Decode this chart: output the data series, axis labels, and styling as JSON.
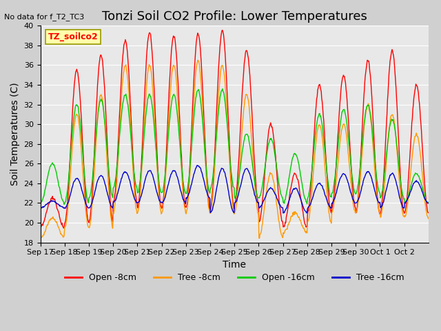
{
  "title": "Tonzi Soil CO2 Profile: Lower Temperatures",
  "no_data_text": "No data for f_T2_TC3",
  "legend_box_text": "TZ_soilco2",
  "xlabel": "Time",
  "ylabel": "Soil Temperatures (C)",
  "ylim": [
    18,
    40
  ],
  "yticks": [
    18,
    20,
    22,
    24,
    26,
    28,
    30,
    32,
    34,
    36,
    38,
    40
  ],
  "xtick_labels": [
    "Sep 17",
    "Sep 18",
    "Sep 19",
    "Sep 20",
    "Sep 21",
    "Sep 22",
    "Sep 23",
    "Sep 24",
    "Sep 25",
    "Sep 26",
    "Sep 27",
    "Sep 28",
    "Sep 29",
    "Sep 30",
    "Oct 1",
    "Oct 2"
  ],
  "colors": {
    "open_8cm": "#ff0000",
    "tree_8cm": "#ff9900",
    "open_16cm": "#00cc00",
    "tree_16cm": "#0000cc"
  },
  "legend_labels": [
    "Open -8cm",
    "Tree -8cm",
    "Open -16cm",
    "Tree -16cm"
  ],
  "plot_bg_color": "#e8e8e8",
  "grid_color": "#ffffff",
  "title_fontsize": 13,
  "axis_fontsize": 10,
  "tick_fontsize": 8,
  "open_8cm_peaks": [
    22.5,
    35.5,
    37.0,
    38.5,
    39.3,
    39.0,
    39.2,
    39.5,
    37.5,
    30.0,
    25.0,
    34.0,
    35.0,
    36.5,
    37.5,
    34.0
  ],
  "open_8cm_troughs": [
    19.5,
    20.0,
    20.0,
    22.0,
    21.5,
    21.5,
    21.5,
    21.5,
    22.0,
    20.0,
    19.5,
    21.0,
    21.5,
    21.0,
    21.0,
    21.0
  ],
  "tree_8cm_peaks": [
    20.5,
    31.0,
    33.0,
    36.0,
    36.0,
    36.0,
    36.5,
    36.0,
    33.0,
    25.0,
    21.0,
    30.0,
    30.0,
    32.0,
    31.0,
    29.0
  ],
  "tree_8cm_troughs": [
    18.5,
    19.5,
    19.5,
    21.0,
    21.0,
    21.0,
    21.0,
    21.0,
    21.0,
    18.5,
    19.0,
    20.0,
    21.0,
    21.0,
    20.5,
    20.5
  ],
  "open_16cm_peaks": [
    26.0,
    32.0,
    32.5,
    33.0,
    33.0,
    33.0,
    33.5,
    33.5,
    29.0,
    28.5,
    27.0,
    31.0,
    31.5,
    32.0,
    30.5,
    25.0
  ],
  "open_16cm_troughs": [
    22.0,
    22.0,
    22.5,
    23.5,
    23.0,
    23.0,
    23.0,
    23.5,
    22.5,
    22.5,
    22.0,
    22.5,
    23.0,
    23.0,
    22.5,
    22.0
  ],
  "tree_16cm_peaks": [
    22.2,
    24.5,
    24.8,
    25.2,
    25.3,
    25.3,
    25.8,
    25.5,
    25.5,
    23.5,
    23.5,
    24.0,
    25.0,
    25.2,
    25.0,
    24.2
  ],
  "tree_16cm_troughs": [
    21.5,
    21.5,
    21.5,
    22.0,
    22.0,
    22.0,
    22.5,
    21.0,
    22.0,
    21.5,
    21.0,
    21.5,
    22.0,
    22.0,
    21.5,
    22.0
  ]
}
